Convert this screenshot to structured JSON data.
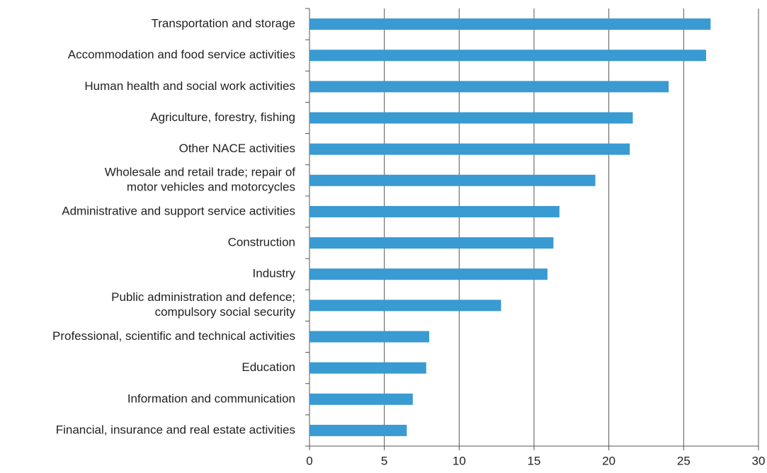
{
  "chart_data": {
    "type": "bar",
    "orientation": "horizontal",
    "categories": [
      "Transportation and storage",
      "Accommodation and food service activities",
      "Human health and social work activities",
      "Agriculture, forestry, fishing",
      "Other NACE activities",
      [
        "Wholesale and retail trade; repair of",
        "motor vehicles and motorcycles"
      ],
      "Administrative and support service activities",
      "Construction",
      "Industry",
      [
        "Public administration and defence;",
        "compulsory social security"
      ],
      "Professional, scientific and technical activities",
      "Education",
      "Information and communication",
      "Financial, insurance and real estate activities"
    ],
    "values": [
      26.8,
      26.5,
      24.0,
      21.6,
      21.4,
      19.1,
      16.7,
      16.3,
      15.9,
      12.8,
      8.0,
      7.8,
      6.9,
      6.5
    ],
    "color": "#3a9ad2",
    "xlim": [
      0,
      30
    ],
    "xticks": [
      0,
      5,
      10,
      15,
      20,
      25,
      30
    ],
    "grid": true
  }
}
